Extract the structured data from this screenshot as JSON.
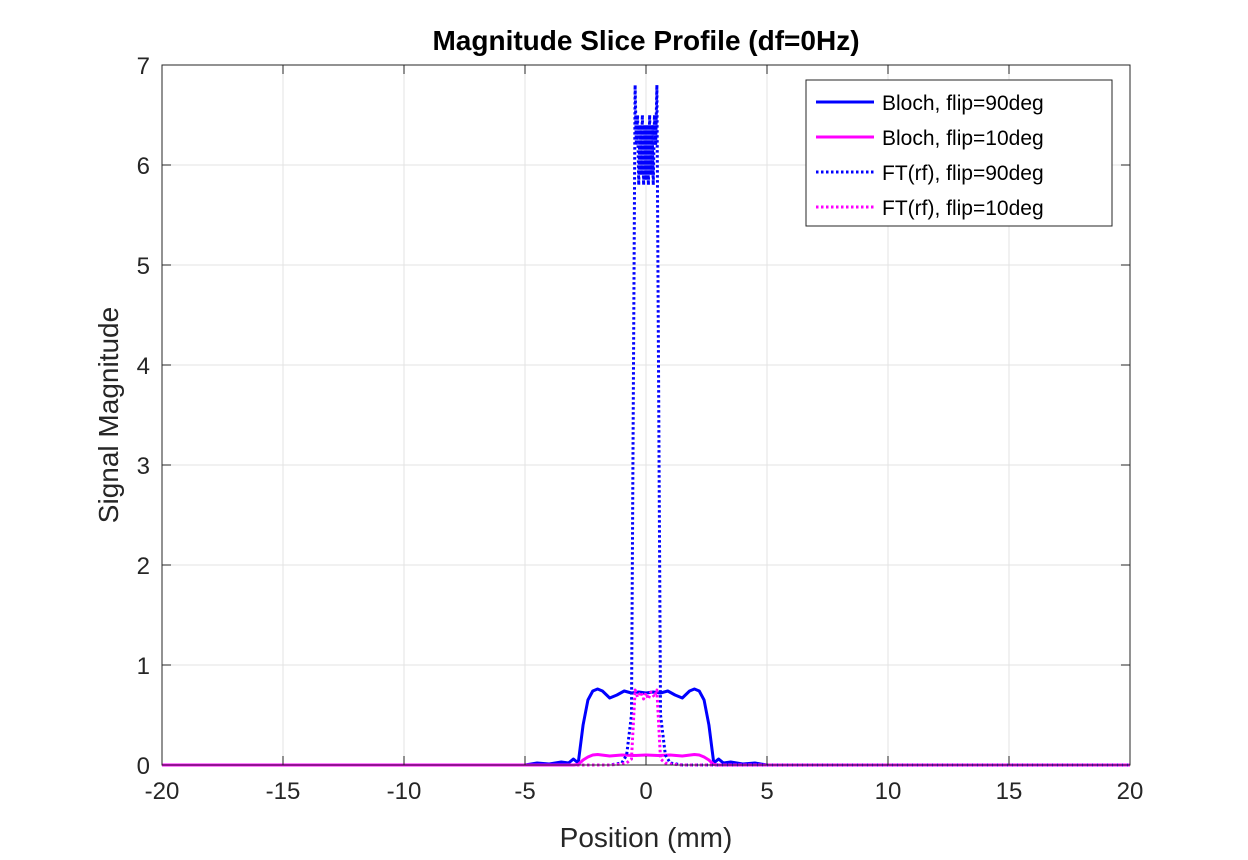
{
  "chart_data": {
    "type": "line",
    "title": "Magnitude Slice Profile (df=0Hz)",
    "xlabel": "Position (mm)",
    "ylabel": "Signal Magnitude",
    "xlim": [
      -20,
      20
    ],
    "ylim": [
      0,
      7
    ],
    "xticks": [
      -20,
      -15,
      -10,
      -5,
      0,
      5,
      10,
      15,
      20
    ],
    "xtick_labels": [
      "-20",
      "-15",
      "-10",
      "-5",
      "0",
      "5",
      "10",
      "15",
      "20"
    ],
    "yticks": [
      0,
      1,
      2,
      3,
      4,
      5,
      6,
      7
    ],
    "ytick_labels": [
      "0",
      "1",
      "2",
      "3",
      "4",
      "5",
      "6",
      "7"
    ],
    "grid": true,
    "legend_position": "top-right",
    "series": [
      {
        "name": "Bloch, flip=90deg",
        "color": "#0000ff",
        "style": "solid",
        "x": [
          -20,
          -5,
          -4.5,
          -4,
          -3.5,
          -3.2,
          -3,
          -2.8,
          -2.6,
          -2.4,
          -2.2,
          -2,
          -1.8,
          -1.5,
          -1.2,
          -0.9,
          -0.6,
          -0.3,
          0,
          0.3,
          0.6,
          0.9,
          1.2,
          1.5,
          1.8,
          2,
          2.2,
          2.4,
          2.6,
          2.8,
          3,
          3.2,
          3.5,
          4,
          4.5,
          5,
          20
        ],
        "y": [
          0,
          0,
          0.02,
          0.01,
          0.03,
          0.02,
          0.06,
          0.02,
          0.4,
          0.65,
          0.74,
          0.76,
          0.74,
          0.67,
          0.7,
          0.74,
          0.72,
          0.73,
          0.72,
          0.73,
          0.72,
          0.74,
          0.7,
          0.67,
          0.74,
          0.76,
          0.74,
          0.65,
          0.4,
          0.02,
          0.06,
          0.02,
          0.03,
          0.01,
          0.02,
          0,
          0
        ]
      },
      {
        "name": "Bloch, flip=10deg",
        "color": "#ff00ff",
        "style": "solid",
        "x": [
          -20,
          -3,
          -2.8,
          -2.6,
          -2.4,
          -2.2,
          -2,
          -1.5,
          -1,
          -0.5,
          0,
          0.5,
          1,
          1.5,
          2,
          2.2,
          2.4,
          2.6,
          2.8,
          3,
          20
        ],
        "y": [
          0,
          0,
          0.005,
          0.05,
          0.08,
          0.1,
          0.105,
          0.09,
          0.1,
          0.095,
          0.1,
          0.095,
          0.1,
          0.09,
          0.105,
          0.1,
          0.08,
          0.05,
          0.005,
          0,
          0
        ]
      },
      {
        "name": "FT(rf), flip=90deg",
        "color": "#0000ff",
        "style": "dotted",
        "x": [
          -20,
          -1.5,
          -1,
          -0.8,
          -0.6,
          -0.45,
          -0.4,
          -0.35,
          -0.3,
          -0.25,
          -0.2,
          -0.15,
          -0.1,
          -0.05,
          0,
          0.05,
          0.1,
          0.15,
          0.2,
          0.25,
          0.3,
          0.35,
          0.4,
          0.45,
          0.6,
          0.8,
          1,
          1.5,
          20
        ],
        "y": [
          0,
          0,
          0.02,
          0.1,
          0.5,
          6.8,
          6.2,
          6.5,
          5.8,
          6.4,
          5.9,
          6.5,
          5.8,
          6.4,
          5.85,
          6.4,
          5.8,
          6.5,
          5.9,
          6.4,
          5.8,
          6.5,
          6.2,
          6.8,
          0.5,
          0.1,
          0.02,
          0,
          0
        ]
      },
      {
        "name": "FT(rf), flip=10deg",
        "color": "#ff00ff",
        "style": "dotted",
        "x": [
          -20,
          -1.5,
          -1,
          -0.8,
          -0.6,
          -0.45,
          -0.35,
          -0.2,
          -0.1,
          0,
          0.1,
          0.2,
          0.35,
          0.45,
          0.6,
          0.8,
          1,
          1.5,
          20
        ],
        "y": [
          0,
          0,
          0.01,
          0.02,
          0.06,
          0.75,
          0.68,
          0.73,
          0.66,
          0.72,
          0.66,
          0.73,
          0.68,
          0.75,
          0.06,
          0.02,
          0.01,
          0,
          0
        ]
      }
    ]
  }
}
